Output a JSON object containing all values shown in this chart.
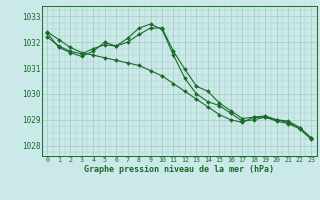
{
  "title": "Graphe pression niveau de la mer (hPa)",
  "background_color": "#cbe9e9",
  "grid_color": "#a8cfc8",
  "line_color": "#1a6b2a",
  "x_labels": [
    "0",
    "1",
    "2",
    "3",
    "4",
    "5",
    "6",
    "7",
    "8",
    "9",
    "10",
    "11",
    "12",
    "13",
    "14",
    "15",
    "16",
    "17",
    "18",
    "19",
    "20",
    "21",
    "22",
    "23"
  ],
  "ylim": [
    1027.6,
    1033.4
  ],
  "yticks": [
    1028,
    1029,
    1030,
    1031,
    1032,
    1033
  ],
  "series": [
    [
      1032.4,
      1032.1,
      1031.8,
      1031.6,
      1031.5,
      1031.4,
      1031.3,
      1031.2,
      1031.1,
      1030.9,
      1030.7,
      1030.4,
      1030.1,
      1029.8,
      1029.5,
      1029.2,
      1029.0,
      1028.9,
      1029.1,
      1029.1,
      1029.0,
      1028.9,
      1028.7,
      1028.3
    ],
    [
      1032.2,
      1031.85,
      1031.65,
      1031.55,
      1031.75,
      1031.9,
      1031.85,
      1032.0,
      1032.3,
      1032.55,
      1032.55,
      1031.65,
      1030.95,
      1030.3,
      1030.1,
      1029.65,
      1029.35,
      1029.05,
      1029.1,
      1029.15,
      1029.0,
      1028.95,
      1028.7,
      1028.3
    ],
    [
      1032.35,
      1031.8,
      1031.6,
      1031.45,
      1031.65,
      1032.0,
      1031.85,
      1032.15,
      1032.55,
      1032.7,
      1032.5,
      1031.5,
      1030.6,
      1030.0,
      1029.7,
      1029.55,
      1029.25,
      1028.95,
      1029.0,
      1029.1,
      1028.95,
      1028.85,
      1028.65,
      1028.25
    ]
  ]
}
